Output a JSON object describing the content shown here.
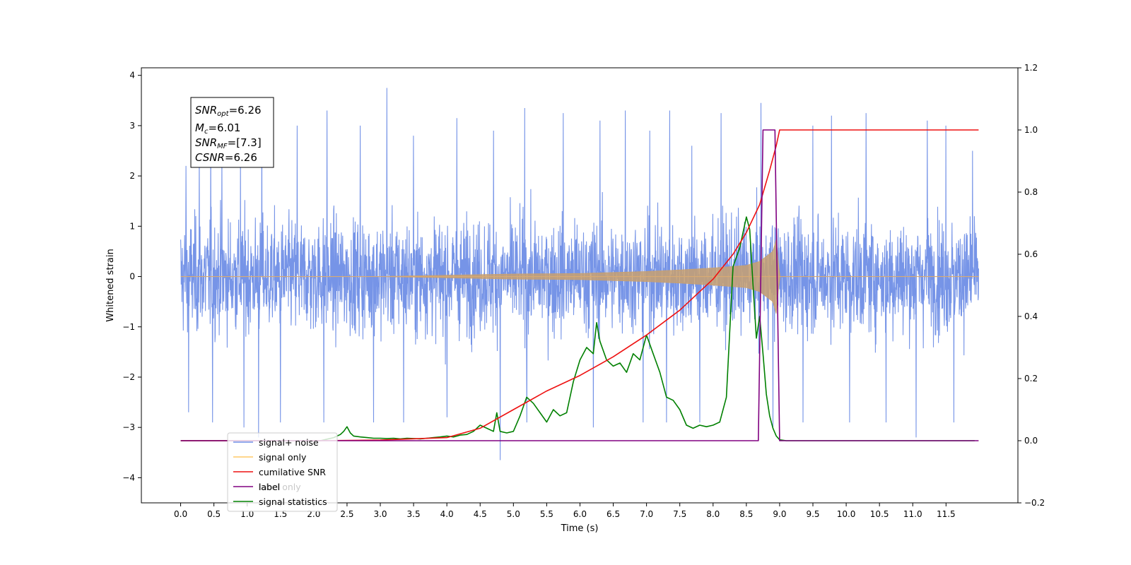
{
  "chart_data": {
    "type": "line",
    "xlabel": "Time (s)",
    "ylabel_left": "Whitened strain",
    "ylabel_right": "",
    "xlim": [
      -0.59,
      12.58
    ],
    "ylim_left": [
      -4.5,
      4.15
    ],
    "ylim_right": [
      -0.2,
      1.2
    ],
    "x_ticks": [
      "0.0",
      "0.5",
      "1.0",
      "1.5",
      "2.0",
      "2.5",
      "3.0",
      "3.5",
      "4.0",
      "4.5",
      "5.0",
      "5.5",
      "6.0",
      "6.5",
      "7.0",
      "7.5",
      "8.0",
      "8.5",
      "9.0",
      "9.5",
      "10.0",
      "10.5",
      "11.0",
      "11.5"
    ],
    "y_ticks_left": [
      "−4",
      "−3",
      "−2",
      "−1",
      "0",
      "1",
      "2",
      "3",
      "4"
    ],
    "y_ticks_right": [
      "−0.2",
      "0.0",
      "0.2",
      "0.4",
      "0.6",
      "0.8",
      "1.0",
      "1.2"
    ],
    "grid": false,
    "legend_position": "lower-left",
    "legend": [
      {
        "name": "signal+ noise",
        "color": "#6f8ee6"
      },
      {
        "name": "signal only",
        "color": "#ffc966"
      },
      {
        "name": "cumilative SNR",
        "color": "#ee1111"
      },
      {
        "name": "label",
        "color": "#800080"
      },
      {
        "name": "signal statistics",
        "color": "#008000"
      }
    ],
    "legend_hidden_text": "label only",
    "annotation": {
      "lines": [
        {
          "sym": "SNR",
          "sub": "opt",
          "val": "=6.26"
        },
        {
          "sym": "M",
          "sub": "c",
          "val": "=6.01"
        },
        {
          "sym": "SNR",
          "sub": "MF",
          "val": "=[7.3]"
        },
        {
          "sym": "CSNR",
          "sub": "",
          "val": "=6.26"
        }
      ]
    },
    "series": [
      {
        "name": "signal+ noise",
        "axis": "left",
        "color": "#6f8ee6",
        "x_range": [
          0.0,
          11.99
        ],
        "noise_sigma": 1.0,
        "spikes": [
          [
            0.08,
            2.2
          ],
          [
            0.28,
            2.5
          ],
          [
            0.45,
            2.8
          ],
          [
            0.62,
            2.4
          ],
          [
            0.9,
            2.5
          ],
          [
            1.22,
            3.3
          ],
          [
            1.75,
            3.0
          ],
          [
            2.2,
            3.3
          ],
          [
            2.7,
            3.0
          ],
          [
            3.1,
            3.75
          ],
          [
            3.5,
            2.8
          ],
          [
            4.15,
            3.15
          ],
          [
            4.7,
            2.9
          ],
          [
            5.17,
            3.35
          ],
          [
            5.75,
            3.25
          ],
          [
            6.3,
            3.1
          ],
          [
            6.68,
            3.3
          ],
          [
            7.05,
            2.9
          ],
          [
            7.35,
            3.3
          ],
          [
            7.68,
            2.6
          ],
          [
            8.12,
            3.25
          ],
          [
            8.72,
            3.45
          ],
          [
            9.5,
            3.0
          ],
          [
            9.78,
            3.2
          ],
          [
            10.3,
            3.25
          ],
          [
            11.22,
            3.1
          ],
          [
            11.5,
            3.0
          ],
          [
            11.9,
            2.5
          ],
          [
            0.12,
            -2.7
          ],
          [
            0.48,
            -2.9
          ],
          [
            0.95,
            -3.0
          ],
          [
            1.17,
            -3.2
          ],
          [
            1.5,
            -2.9
          ],
          [
            2.15,
            -2.9
          ],
          [
            2.9,
            -2.9
          ],
          [
            3.35,
            -2.9
          ],
          [
            4.0,
            -2.8
          ],
          [
            4.8,
            -3.65
          ],
          [
            5.2,
            -2.9
          ],
          [
            6.2,
            -3.0
          ],
          [
            6.95,
            -2.9
          ],
          [
            7.3,
            -2.9
          ],
          [
            7.8,
            -2.9
          ],
          [
            8.9,
            -3.0
          ],
          [
            9.35,
            -2.9
          ],
          [
            10.05,
            -2.9
          ],
          [
            10.6,
            -2.9
          ],
          [
            11.05,
            -3.2
          ],
          [
            11.62,
            -2.9
          ]
        ]
      },
      {
        "name": "signal only",
        "axis": "left",
        "color": "#ffc966",
        "envelope": {
          "x": [
            0.0,
            3.0,
            5.0,
            6.0,
            7.0,
            7.5,
            8.0,
            8.5,
            8.7,
            8.9,
            8.95,
            9.0,
            11.99
          ],
          "amp": [
            0.0,
            0.0,
            0.05,
            0.06,
            0.1,
            0.13,
            0.17,
            0.22,
            0.3,
            0.5,
            0.75,
            0.0,
            0.0
          ]
        }
      },
      {
        "name": "cumilative SNR",
        "axis": "right",
        "color": "#ee1111",
        "x": [
          0.0,
          1.0,
          2.0,
          3.0,
          4.0,
          4.5,
          5.0,
          5.5,
          6.0,
          6.5,
          7.0,
          7.5,
          8.0,
          8.3,
          8.5,
          8.7,
          8.85,
          8.95,
          9.0,
          11.99
        ],
        "y": [
          0.0,
          0.0,
          0.0,
          0.002,
          0.01,
          0.04,
          0.1,
          0.16,
          0.21,
          0.27,
          0.34,
          0.42,
          0.52,
          0.6,
          0.67,
          0.76,
          0.87,
          0.95,
          1.0,
          1.0
        ]
      },
      {
        "name": "label",
        "axis": "right",
        "color": "#800080",
        "x": [
          0.0,
          8.68,
          8.75,
          8.93,
          9.0,
          11.99
        ],
        "y": [
          0.0,
          0.0,
          1.0,
          1.0,
          0.0,
          0.0
        ]
      },
      {
        "name": "signal statistics",
        "axis": "right",
        "color": "#008000",
        "x": [
          0.0,
          2.1,
          2.2,
          2.3,
          2.4,
          2.45,
          2.5,
          2.55,
          2.6,
          2.7,
          2.8,
          2.9,
          3.0,
          3.1,
          3.2,
          3.3,
          3.4,
          3.5,
          3.6,
          3.7,
          3.8,
          3.9,
          4.0,
          4.1,
          4.2,
          4.3,
          4.4,
          4.5,
          4.6,
          4.7,
          4.75,
          4.8,
          4.9,
          5.0,
          5.1,
          5.2,
          5.3,
          5.4,
          5.5,
          5.6,
          5.7,
          5.8,
          5.9,
          6.0,
          6.1,
          6.2,
          6.25,
          6.3,
          6.4,
          6.5,
          6.6,
          6.7,
          6.8,
          6.9,
          7.0,
          7.1,
          7.2,
          7.3,
          7.4,
          7.5,
          7.6,
          7.7,
          7.8,
          7.9,
          8.0,
          8.1,
          8.2,
          8.25,
          8.3,
          8.4,
          8.5,
          8.55,
          8.6,
          8.65,
          8.7,
          8.75,
          8.8,
          8.85,
          8.9,
          8.95,
          9.0,
          9.1,
          11.93
        ],
        "y": [
          0.0,
          0.0,
          0.005,
          0.01,
          0.02,
          0.03,
          0.045,
          0.025,
          0.015,
          0.012,
          0.01,
          0.008,
          0.008,
          0.007,
          0.008,
          0.006,
          0.008,
          0.007,
          0.006,
          0.008,
          0.01,
          0.012,
          0.015,
          0.012,
          0.018,
          0.02,
          0.03,
          0.05,
          0.04,
          0.03,
          0.09,
          0.03,
          0.025,
          0.03,
          0.08,
          0.14,
          0.12,
          0.09,
          0.06,
          0.1,
          0.08,
          0.09,
          0.19,
          0.26,
          0.3,
          0.28,
          0.38,
          0.32,
          0.26,
          0.24,
          0.25,
          0.22,
          0.28,
          0.26,
          0.34,
          0.28,
          0.22,
          0.14,
          0.13,
          0.1,
          0.05,
          0.04,
          0.05,
          0.045,
          0.05,
          0.06,
          0.14,
          0.35,
          0.56,
          0.62,
          0.72,
          0.68,
          0.5,
          0.33,
          0.4,
          0.28,
          0.15,
          0.08,
          0.04,
          0.015,
          0.003,
          0.0,
          0.0
        ]
      }
    ]
  }
}
